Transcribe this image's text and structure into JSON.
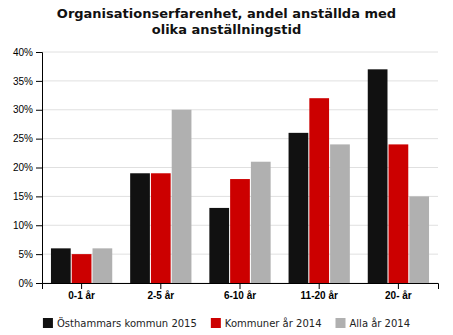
{
  "chart_data": {
    "type": "bar",
    "title": "Organisationserfarenhet, andel anställda med\nolika anställningstid",
    "categories": [
      "0-1 år",
      "2-5 år",
      "6-10 år",
      "11-20 år",
      "20- år"
    ],
    "series": [
      {
        "name": "Östhammars kommun 2015",
        "color": "#111111",
        "values": [
          6,
          19,
          13,
          26,
          37
        ]
      },
      {
        "name": "Kommuner år 2014",
        "color": "#cc0000",
        "values": [
          5,
          19,
          18,
          32,
          24
        ]
      },
      {
        "name": "Alla år 2014",
        "color": "#b0b0b0",
        "values": [
          6,
          30,
          21,
          24,
          15
        ]
      }
    ],
    "ylim": [
      0,
      40
    ],
    "yticks": [
      {
        "value": 0,
        "label": "0%"
      },
      {
        "value": 5,
        "label": "5%"
      },
      {
        "value": 10,
        "label": "10%"
      },
      {
        "value": 15,
        "label": "15%"
      },
      {
        "value": 20,
        "label": "20%"
      },
      {
        "value": 25,
        "label": "25%"
      },
      {
        "value": 30,
        "label": "30%"
      },
      {
        "value": 35,
        "label": "35%"
      },
      {
        "value": 40,
        "label": "40%"
      }
    ],
    "grid": true,
    "legend": "bottom"
  }
}
